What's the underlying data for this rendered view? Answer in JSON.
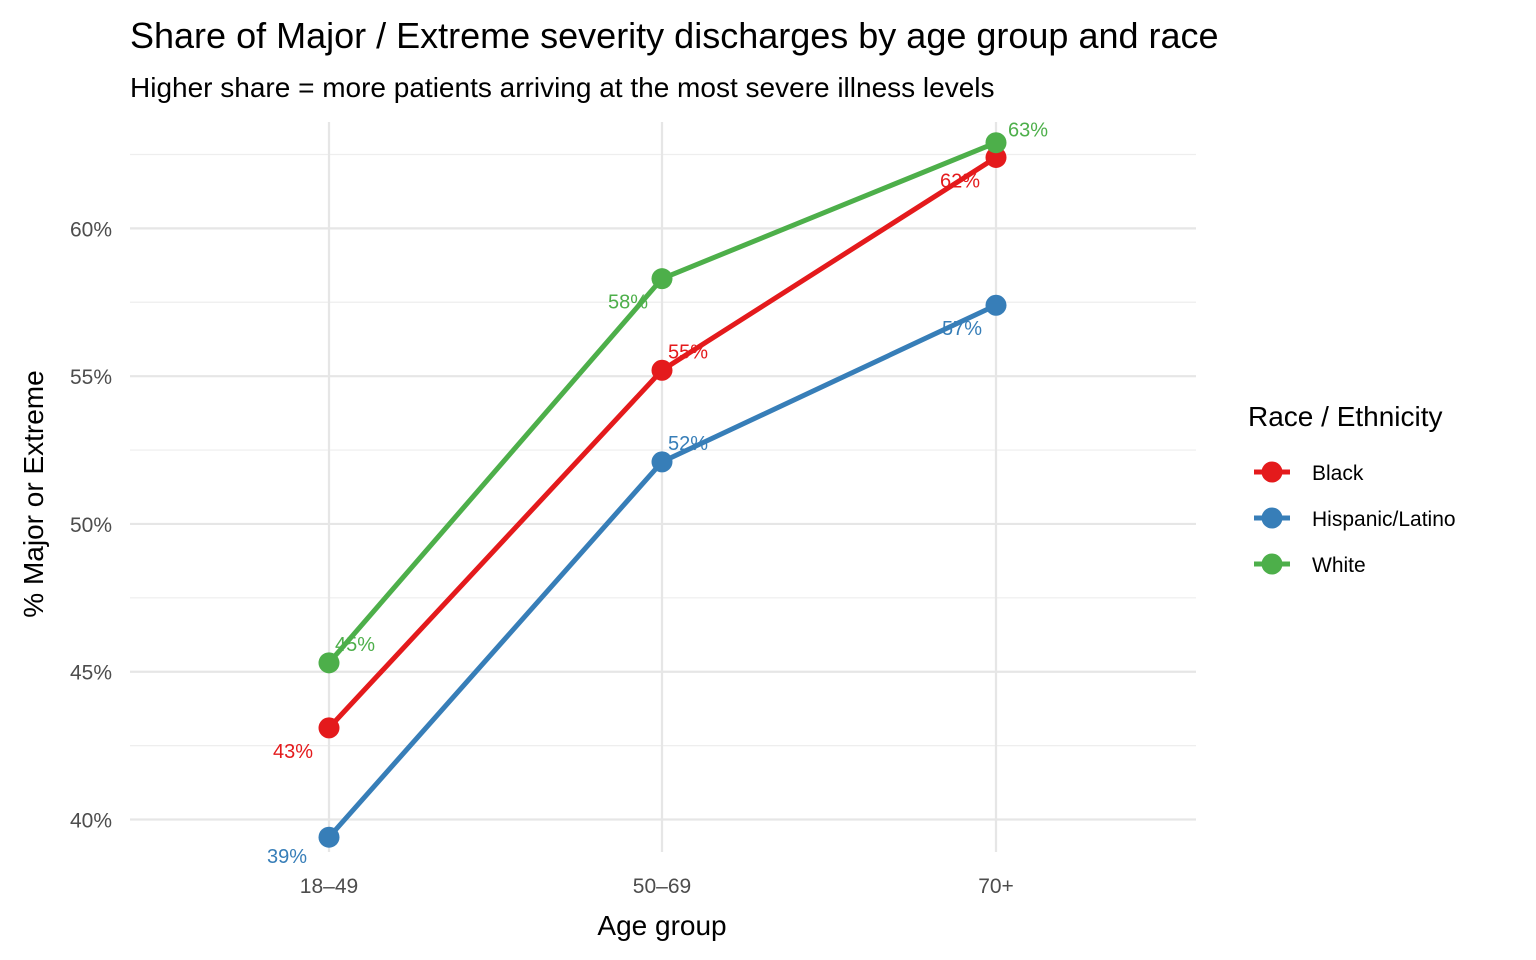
{
  "chart_data": {
    "type": "line",
    "title": "Share of Major / Extreme severity discharges by age group and race",
    "subtitle": "Higher share = more patients arriving at the most severe illness levels",
    "xlabel": "Age group",
    "ylabel": "% Major or Extreme",
    "categories": [
      "18–49",
      "50–69",
      "70+"
    ],
    "ylim": [
      38.9,
      63.6
    ],
    "yticks": [
      40,
      45,
      50,
      55,
      60
    ],
    "ytick_labels": [
      "40%",
      "45%",
      "50%",
      "55%",
      "60%"
    ],
    "grid": true,
    "legend": {
      "title": "Race / Ethnicity",
      "placement": "right"
    },
    "series": [
      {
        "name": "Black",
        "color": "#E41A1C",
        "values": [
          43.1,
          55.2,
          62.4
        ],
        "labels": [
          "43%",
          "55%",
          "62%"
        ]
      },
      {
        "name": "Hispanic/Latino",
        "color": "#377EB8",
        "values": [
          39.4,
          52.1,
          57.4
        ],
        "labels": [
          "39%",
          "52%",
          "57%"
        ]
      },
      {
        "name": "White",
        "color": "#4DAF4A",
        "values": [
          45.3,
          58.3,
          62.9
        ],
        "labels": [
          "45%",
          "58%",
          "63%"
        ]
      }
    ]
  }
}
